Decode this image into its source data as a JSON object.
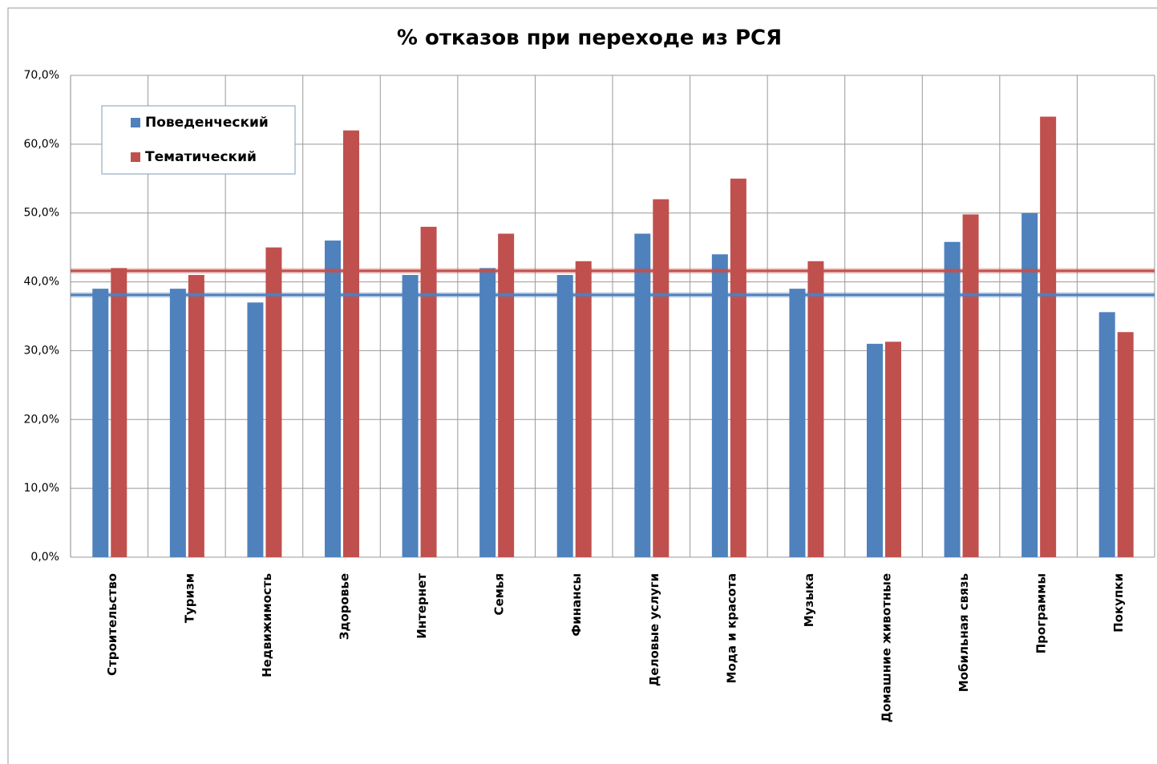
{
  "chart_data": {
    "type": "bar",
    "title": "% отказов при переходе из РСЯ",
    "categories": [
      "Строительство",
      "Туризм",
      "Недвижимость",
      "Здоровье",
      "Интернет",
      "Семья",
      "Финансы",
      "Деловые услуги",
      "Мода и красота",
      "Музыка",
      "Домашние животные",
      "Мобильная связь",
      "Программы",
      "Покупки"
    ],
    "series": [
      {
        "name": "Поведенческий",
        "color": "#4f81bd",
        "values": [
          39,
          39,
          37,
          46,
          41,
          42,
          41,
          47,
          44,
          39,
          31,
          45.8,
          50,
          35.6
        ]
      },
      {
        "name": "Тематический",
        "color": "#c0504d",
        "values": [
          42,
          41,
          45,
          62,
          48,
          47,
          43,
          52,
          55,
          43,
          31.3,
          49.8,
          64,
          32.7
        ]
      }
    ],
    "reference_lines": [
      {
        "value": 41.6,
        "color": "#c0504d"
      },
      {
        "value": 38.1,
        "color": "#4f81bd"
      }
    ],
    "ylim": [
      0,
      70
    ],
    "yticks": [
      {
        "value": 0,
        "label": "0,0%"
      },
      {
        "value": 10,
        "label": "10,0%"
      },
      {
        "value": 20,
        "label": "20,0%"
      },
      {
        "value": 30,
        "label": "30,0%"
      },
      {
        "value": 40,
        "label": "40,0%"
      },
      {
        "value": 50,
        "label": "50,0%"
      },
      {
        "value": 60,
        "label": "60,0%"
      },
      {
        "value": 70,
        "label": "70,0%"
      }
    ],
    "grid": true,
    "legend": "upper left"
  }
}
